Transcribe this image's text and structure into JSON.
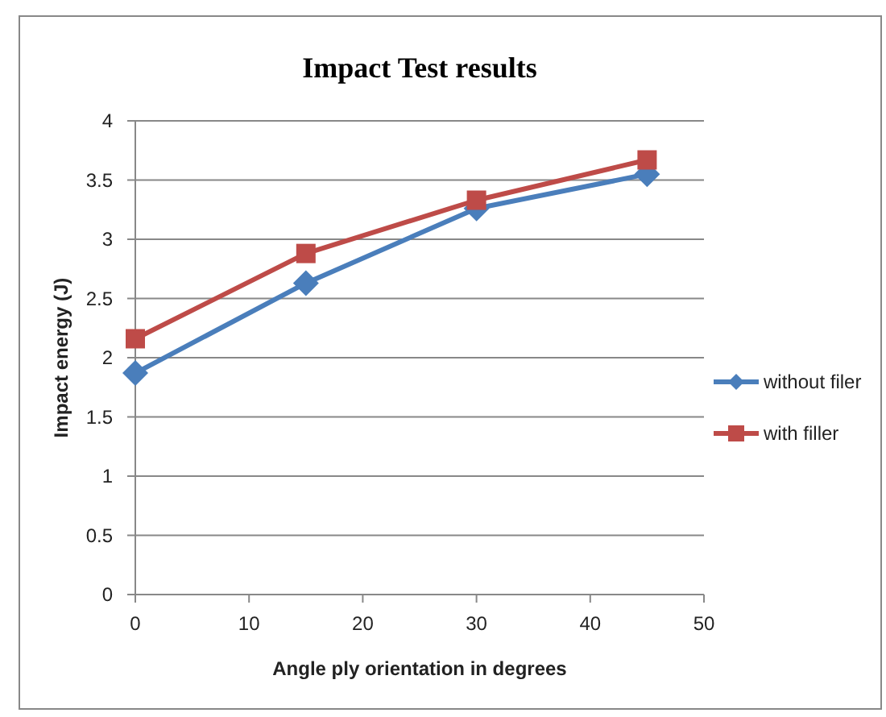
{
  "chart_data": {
    "type": "line",
    "title": "Impact Test results",
    "xlabel": "Angle ply orientation in degrees",
    "ylabel": "Impact energy  (J)",
    "x": [
      0,
      15,
      30,
      45
    ],
    "series": [
      {
        "name": "without filer",
        "color": "#4a7ebb",
        "marker": "diamond",
        "values": [
          1.87,
          2.63,
          3.26,
          3.55
        ]
      },
      {
        "name": "with filler",
        "color": "#be4b48",
        "marker": "square",
        "values": [
          2.16,
          2.88,
          3.33,
          3.67
        ]
      }
    ],
    "xlim": [
      0,
      50
    ],
    "xticks": [
      0,
      10,
      20,
      30,
      40,
      50
    ],
    "ylim": [
      0,
      4
    ],
    "yticks": [
      0,
      0.5,
      1,
      1.5,
      2,
      2.5,
      3,
      3.5,
      4
    ],
    "grid": "y",
    "legend": "right"
  }
}
